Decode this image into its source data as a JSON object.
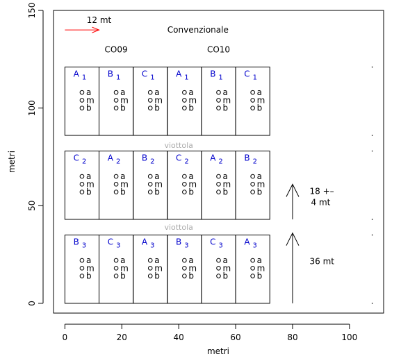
{
  "chart_data": {
    "type": "scatter",
    "title": "",
    "xlabel": "metri",
    "ylabel": "metri",
    "xlim": [
      -4,
      112
    ],
    "ylim": [
      -5,
      150
    ],
    "x_ticks": [
      0,
      20,
      40,
      60,
      80,
      100
    ],
    "y_ticks": [
      0,
      50,
      100,
      150
    ],
    "grid": false,
    "legend": "none",
    "colors": {
      "axis": "#000000",
      "plot_label": "#0000cc",
      "scale_arrow": "#ff0000",
      "path_label": "#aaaaaa"
    },
    "main_label": {
      "text": "Convenzionale",
      "x": 36,
      "y": 140
    },
    "scale_bar": {
      "text": "12 mt",
      "x_from": 0,
      "x_to": 12,
      "y": 140,
      "label_x": 12,
      "label_y": 145
    },
    "group_labels": [
      {
        "text": "CO09",
        "x": 18,
        "y": 130
      },
      {
        "text": "CO10",
        "x": 54,
        "y": 130
      }
    ],
    "path_labels": [
      {
        "text": "viottola",
        "x": 40,
        "y": 81
      },
      {
        "text": "viottola",
        "x": 40,
        "y": 39
      }
    ],
    "strip_x_edges": [
      0,
      12,
      24,
      36,
      48,
      60,
      72
    ],
    "strips": [
      {
        "y_bottom": 86,
        "y_top": 121,
        "plot_labels": [
          {
            "letter": "A",
            "sub": "1"
          },
          {
            "letter": "B",
            "sub": "1"
          },
          {
            "letter": "C",
            "sub": "1"
          },
          {
            "letter": "A",
            "sub": "1"
          },
          {
            "letter": "B",
            "sub": "1"
          },
          {
            "letter": "C",
            "sub": "1"
          }
        ],
        "label_y": 116,
        "point_y": {
          "a": 108,
          "m": 104,
          "b": 100
        }
      },
      {
        "y_bottom": 43,
        "y_top": 78,
        "plot_labels": [
          {
            "letter": "C",
            "sub": "2"
          },
          {
            "letter": "A",
            "sub": "2"
          },
          {
            "letter": "B",
            "sub": "2"
          },
          {
            "letter": "C",
            "sub": "2"
          },
          {
            "letter": "A",
            "sub": "2"
          },
          {
            "letter": "B",
            "sub": "2"
          }
        ],
        "label_y": 73,
        "point_y": {
          "a": 65,
          "m": 61,
          "b": 57
        }
      },
      {
        "y_bottom": 0,
        "y_top": 35,
        "plot_labels": [
          {
            "letter": "B",
            "sub": "3"
          },
          {
            "letter": "C",
            "sub": "3"
          },
          {
            "letter": "A",
            "sub": "3"
          },
          {
            "letter": "B",
            "sub": "3"
          },
          {
            "letter": "C",
            "sub": "3"
          },
          {
            "letter": "A",
            "sub": "3"
          }
        ],
        "label_y": 30,
        "point_y": {
          "a": 22,
          "m": 18,
          "b": 14
        }
      }
    ],
    "sample_points": {
      "x_offset": 6,
      "labels": [
        "a",
        "m",
        "b"
      ]
    },
    "distance_arrows": [
      {
        "x": 80,
        "y_from": 43,
        "y_to": 61,
        "label_lines": [
          "18 +–",
          "4 mt"
        ],
        "label_x": 86,
        "label_y": 56
      },
      {
        "x": 80,
        "y_from": 0,
        "y_to": 36,
        "label_lines": [
          "36 mt"
        ],
        "label_x": 86,
        "label_y": 20
      }
    ],
    "edge_marks": [
      {
        "x": 108,
        "y": 121
      },
      {
        "x": 108,
        "y": 86
      },
      {
        "x": 108,
        "y": 78
      },
      {
        "x": 108,
        "y": 43
      },
      {
        "x": 108,
        "y": 35
      },
      {
        "x": 108,
        "y": 0
      }
    ]
  }
}
